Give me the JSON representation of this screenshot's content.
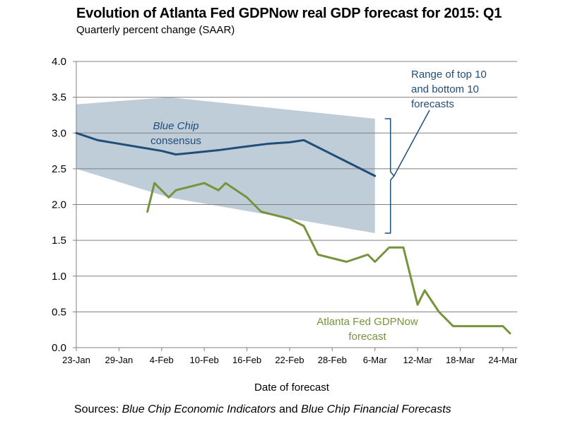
{
  "chart_data": {
    "type": "line",
    "title": "Evolution of Atlanta Fed GDPNow real GDP forecast for 2015: Q1",
    "subtitle": "Quarterly percent change (SAAR)",
    "xlabel": "Date of forecast",
    "ylabel": "",
    "ylim": [
      0,
      4
    ],
    "x_tick_labels": [
      "23-Jan",
      "29-Jan",
      "4-Feb",
      "10-Feb",
      "16-Feb",
      "22-Feb",
      "28-Feb",
      "6-Mar",
      "12-Mar",
      "18-Mar",
      "24-Mar"
    ],
    "x_tick_days": [
      0,
      6,
      12,
      18,
      24,
      30,
      36,
      42,
      48,
      54,
      60
    ],
    "xlim_days": [
      0,
      62
    ],
    "y_tick_labels": [
      "0.0",
      "0.5",
      "1.0",
      "1.5",
      "2.0",
      "2.5",
      "3.0",
      "3.5",
      "4.0"
    ],
    "y_ticks": [
      0,
      0.5,
      1,
      1.5,
      2,
      2.5,
      3,
      3.5,
      4
    ],
    "grid": true,
    "series": [
      {
        "name": "Blue Chip consensus",
        "color": "#1F4E79",
        "points": [
          [
            0,
            3.0
          ],
          [
            3,
            2.9
          ],
          [
            6,
            2.85
          ],
          [
            9,
            2.8
          ],
          [
            12,
            2.75
          ],
          [
            14,
            2.7
          ],
          [
            17,
            2.73
          ],
          [
            20,
            2.76
          ],
          [
            23,
            2.8
          ],
          [
            27,
            2.85
          ],
          [
            30,
            2.87
          ],
          [
            32,
            2.9
          ],
          [
            35,
            2.75
          ],
          [
            38,
            2.6
          ],
          [
            42,
            2.4
          ]
        ]
      },
      {
        "name": "Atlanta Fed GDPNow forecast",
        "color": "#77933C",
        "points": [
          [
            10,
            1.9
          ],
          [
            11,
            2.3
          ],
          [
            13,
            2.1
          ],
          [
            14,
            2.2
          ],
          [
            16,
            2.25
          ],
          [
            18,
            2.3
          ],
          [
            20,
            2.2
          ],
          [
            21,
            2.3
          ],
          [
            24,
            2.1
          ],
          [
            26,
            1.9
          ],
          [
            30,
            1.8
          ],
          [
            32,
            1.7
          ],
          [
            34,
            1.3
          ],
          [
            38,
            1.2
          ],
          [
            41,
            1.3
          ],
          [
            42,
            1.2
          ],
          [
            44,
            1.4
          ],
          [
            46,
            1.4
          ],
          [
            48,
            0.6
          ],
          [
            49,
            0.8
          ],
          [
            51,
            0.5
          ],
          [
            53,
            0.3
          ],
          [
            56,
            0.3
          ],
          [
            60,
            0.3
          ],
          [
            61,
            0.2
          ]
        ]
      }
    ],
    "range_band": {
      "name": "Range of top 10 and bottom 10 forecasts",
      "color": "#BFCDD9",
      "upper": [
        [
          0,
          3.4
        ],
        [
          13,
          3.5
        ],
        [
          42,
          3.2
        ]
      ],
      "lower": [
        [
          42,
          1.6
        ],
        [
          13,
          2.1
        ],
        [
          0,
          2.5
        ]
      ]
    },
    "annotations": {
      "blue_chip_line1": "Blue Chip",
      "blue_chip_line2": "consensus",
      "range_line1": "Range of top 10",
      "range_line2": "and bottom 10",
      "range_line3": "forecasts",
      "gdpnow_line1": "Atlanta Fed GDPNow",
      "gdpnow_line2": "forecast"
    }
  },
  "sources": {
    "prefix": "Sources:",
    "ref1": "Blue Chip Economic Indicators",
    "conj": "and",
    "ref2": "Blue Chip Financial Forecasts"
  },
  "colors": {
    "axis": "#808080",
    "grid": "#808080",
    "text": "#000000",
    "blue_text": "#1F4E79",
    "green_text": "#77933C"
  }
}
